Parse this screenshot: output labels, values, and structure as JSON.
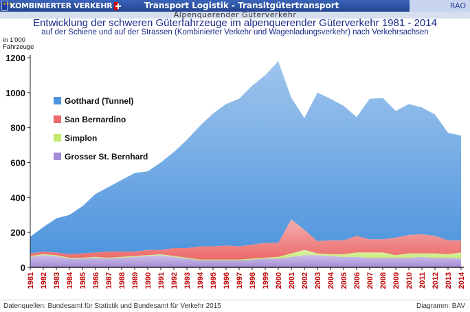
{
  "header": {
    "brand": "KOMBINIERTER VERKEHR",
    "bar_title": "Transport Logistik - Transitgütertransport",
    "rao": "RAO",
    "section": "Alpenquerender Güterverkehr"
  },
  "footer": {
    "source": "Datenquellen: Bundesamt für Statistik und Bundesamt für Verkehr 2015",
    "diagram": "Diagramm: BAV"
  },
  "colors": {
    "gotthard": "#4f95dd",
    "san_bernardino": "#ec6b6b",
    "simplon": "#c3ea6a",
    "grosser_st_bernhard": "#a48cd6",
    "title": "#1a2a8a",
    "year_labels": "#c00000"
  },
  "chart_data": {
    "type": "area",
    "stacked": true,
    "title": "Entwicklung der schweren Güterfahrzeuge im alpenquerender Güterverkehr 1981 - 2014",
    "subtitle": "auf der Schiene und auf der Strassen (Kombinierter Verkehr und Wagenladungsverkehr) nach Verkehrsachsen",
    "ylabel": "in 1'000 Fahrzeuge",
    "xlabel": "",
    "ylim": [
      0,
      1200
    ],
    "yticks": [
      0,
      200,
      400,
      600,
      800,
      1000,
      1200
    ],
    "grid": false,
    "legend_position": "left",
    "x": [
      "1981",
      "1982",
      "1983",
      "1984",
      "1985",
      "1986",
      "1987",
      "1988",
      "1989",
      "1990",
      "1991",
      "1992",
      "1993",
      "1994",
      "1995",
      "1996",
      "1997",
      "1998",
      "1999",
      "2000",
      "2001",
      "2002",
      "2003",
      "2004",
      "2005",
      "2006",
      "2007",
      "2008",
      "2009",
      "2010",
      "2011",
      "2012",
      "2013",
      "2014"
    ],
    "series": [
      {
        "name": "Grosser St. Bernhard",
        "values": [
          60,
          70,
          65,
          50,
          50,
          55,
          50,
          55,
          60,
          65,
          70,
          60,
          50,
          40,
          40,
          40,
          40,
          45,
          50,
          50,
          60,
          70,
          70,
          65,
          60,
          60,
          55,
          55,
          55,
          55,
          60,
          55,
          55,
          50
        ]
      },
      {
        "name": "Simplon",
        "values": [
          5,
          5,
          5,
          5,
          5,
          5,
          5,
          5,
          5,
          5,
          5,
          5,
          5,
          5,
          5,
          5,
          5,
          5,
          5,
          10,
          20,
          30,
          10,
          10,
          15,
          25,
          30,
          30,
          15,
          25,
          20,
          25,
          20,
          35
        ]
      },
      {
        "name": "San Bernardino",
        "values": [
          15,
          15,
          15,
          20,
          25,
          25,
          35,
          30,
          25,
          30,
          25,
          45,
          55,
          75,
          75,
          80,
          75,
          80,
          85,
          80,
          195,
          115,
          70,
          80,
          80,
          95,
          75,
          75,
          100,
          105,
          110,
          100,
          80,
          70
        ]
      },
      {
        "name": "Gotthard (Tunnel)",
        "values": [
          95,
          140,
          195,
          225,
          270,
          335,
          370,
          410,
          450,
          450,
          500,
          550,
          620,
          690,
          760,
          810,
          845,
          910,
          960,
          1040,
          695,
          640,
          850,
          810,
          770,
          680,
          805,
          810,
          725,
          750,
          725,
          695,
          615,
          600
        ]
      }
    ]
  }
}
